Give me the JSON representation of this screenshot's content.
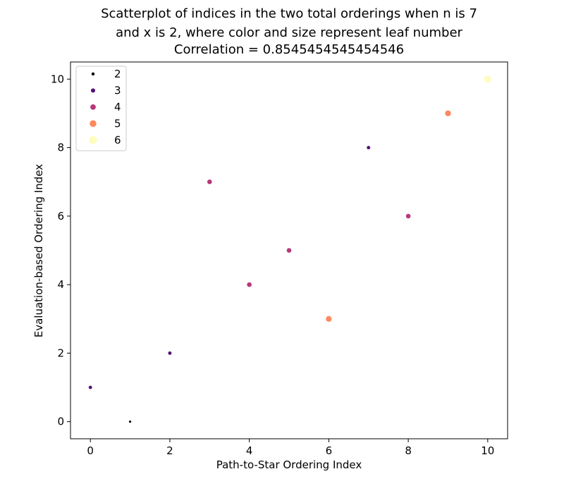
{
  "chart_data": {
    "type": "scatter",
    "title_lines": [
      "Scatterplot of indices in the two total orderings when n is 7",
      "and x is 2, where color and size represent leaf number",
      "Correlation = 0.8545454545454546"
    ],
    "xlabel": "Path-to-Star Ordering Index",
    "ylabel": "Evaluation-based Ordering Index",
    "xlim": [
      -0.5,
      10.5
    ],
    "ylim": [
      -0.5,
      10.5
    ],
    "xticks": [
      0,
      2,
      4,
      6,
      8,
      10
    ],
    "yticks": [
      0,
      2,
      4,
      6,
      8,
      10
    ],
    "grid": false,
    "legend": {
      "placement": "top-left",
      "entries": [
        {
          "label": "2",
          "color": "#000004"
        },
        {
          "label": "3",
          "color": "#51127c"
        },
        {
          "label": "4",
          "color": "#b73779"
        },
        {
          "label": "5",
          "color": "#fc8961"
        },
        {
          "label": "6",
          "color": "#fcfdbf"
        }
      ]
    },
    "points": [
      {
        "x": 0,
        "y": 1,
        "leaf": 3
      },
      {
        "x": 1,
        "y": 0,
        "leaf": 2
      },
      {
        "x": 2,
        "y": 2,
        "leaf": 3
      },
      {
        "x": 3,
        "y": 7,
        "leaf": 4
      },
      {
        "x": 4,
        "y": 4,
        "leaf": 4
      },
      {
        "x": 5,
        "y": 5,
        "leaf": 4
      },
      {
        "x": 6,
        "y": 3,
        "leaf": 5
      },
      {
        "x": 7,
        "y": 8,
        "leaf": 3
      },
      {
        "x": 8,
        "y": 6,
        "leaf": 4
      },
      {
        "x": 9,
        "y": 9,
        "leaf": 5
      },
      {
        "x": 10,
        "y": 10,
        "leaf": 6
      }
    ]
  }
}
